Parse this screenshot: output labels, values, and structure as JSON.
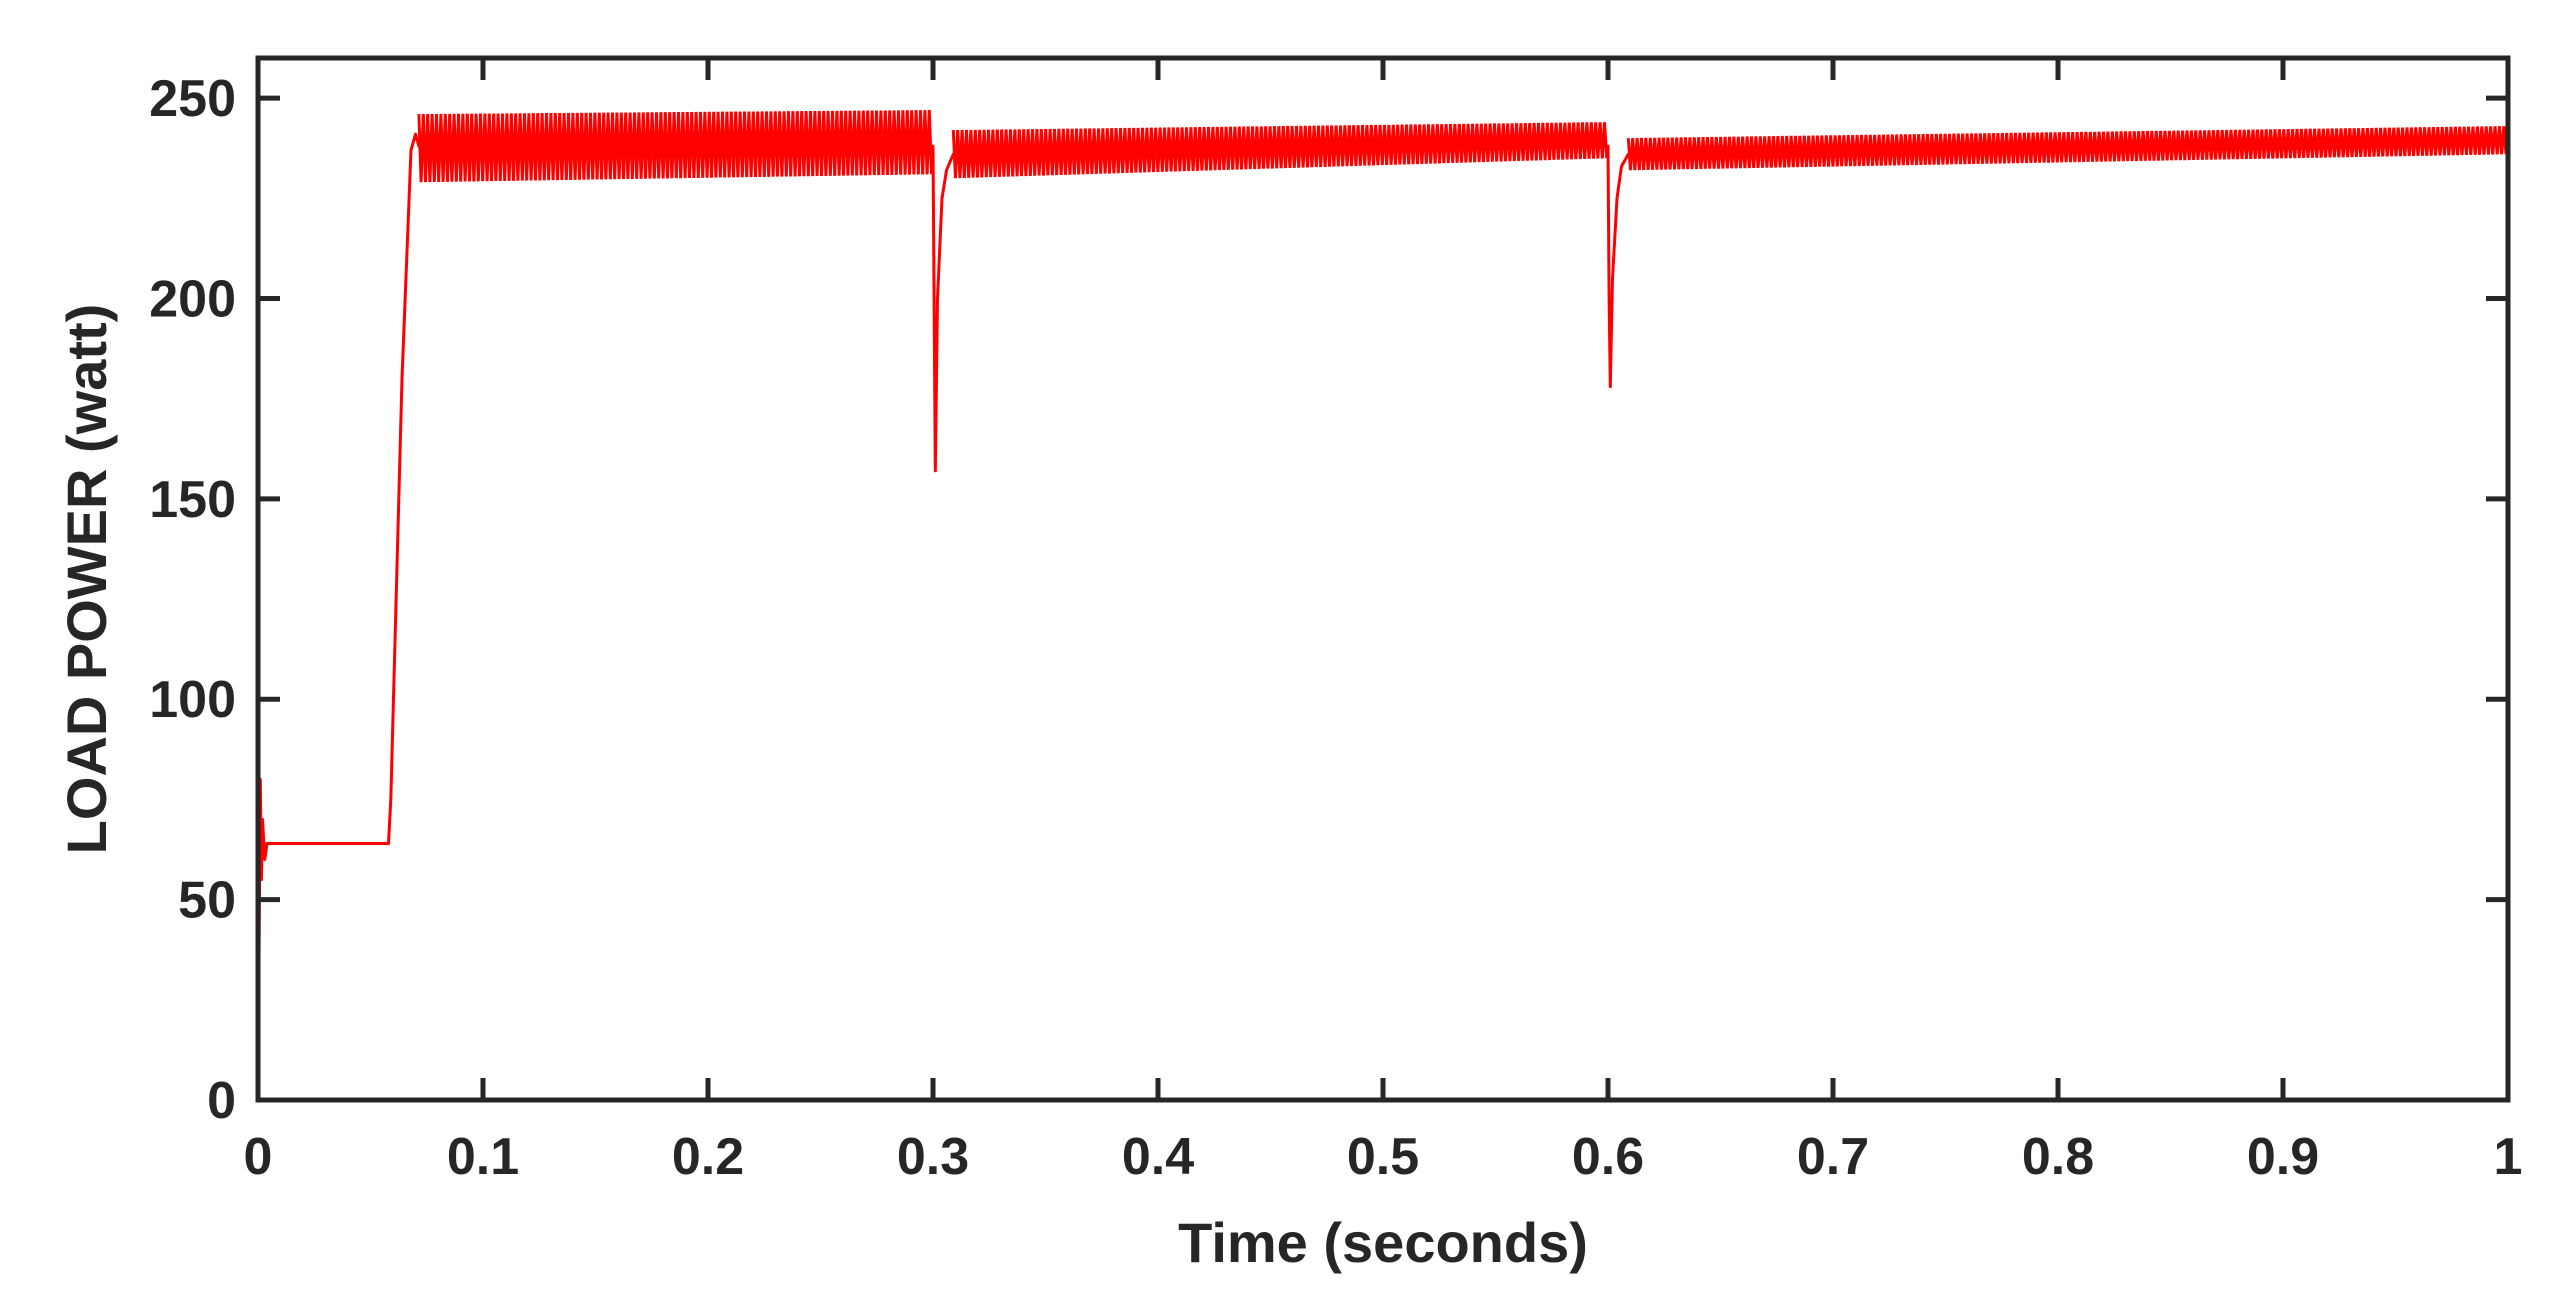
{
  "chart_data": {
    "type": "line",
    "title": "",
    "xlabel": "Time (seconds)",
    "ylabel": "LOAD POWER (watt)",
    "xlim": [
      0,
      1
    ],
    "ylim": [
      0,
      260
    ],
    "xticks": [
      0,
      0.1,
      0.2,
      0.3,
      0.4,
      0.5,
      0.6,
      0.7,
      0.8,
      0.9,
      1
    ],
    "xtick_labels": [
      "0",
      "0.1",
      "0.2",
      "0.3",
      "0.4",
      "0.5",
      "0.6",
      "0.7",
      "0.8",
      "0.9",
      "1"
    ],
    "yticks": [
      0,
      50,
      100,
      150,
      200,
      250
    ],
    "ytick_labels": [
      "0",
      "50",
      "100",
      "150",
      "200",
      "250"
    ],
    "grid": false,
    "box": true,
    "series": [
      {
        "color": "#ff0000",
        "x": [
          0,
          0.001,
          0.0015,
          0.002,
          0.003,
          0.004,
          0.006,
          0.058,
          0.059,
          0.064,
          0.068,
          0.07,
          0.0715,
          0.3,
          0.3005,
          0.301,
          0.302,
          0.304,
          0.306,
          0.309,
          0.6,
          0.6005,
          0.601,
          0.602,
          0.604,
          0.606,
          0.609,
          1
        ],
        "y": [
          0,
          80,
          55,
          70,
          60,
          64,
          64,
          64,
          75,
          180,
          237,
          241,
          238,
          238,
          200,
          157,
          200,
          225,
          232,
          236,
          238,
          200,
          178,
          205,
          225,
          233,
          236,
          239
        ]
      }
    ],
    "ripple_bands": [
      {
        "x_start": 0.0715,
        "x_end": 0.3,
        "low_start": 229,
        "low_end": 231,
        "high_start": 246,
        "high_end": 247
      },
      {
        "x_start": 0.309,
        "x_end": 0.6,
        "low_start": 230,
        "low_end": 235,
        "high_start": 242,
        "high_end": 244
      },
      {
        "x_start": 0.609,
        "x_end": 1,
        "low_start": 232,
        "low_end": 236,
        "high_start": 240,
        "high_end": 243
      }
    ]
  }
}
